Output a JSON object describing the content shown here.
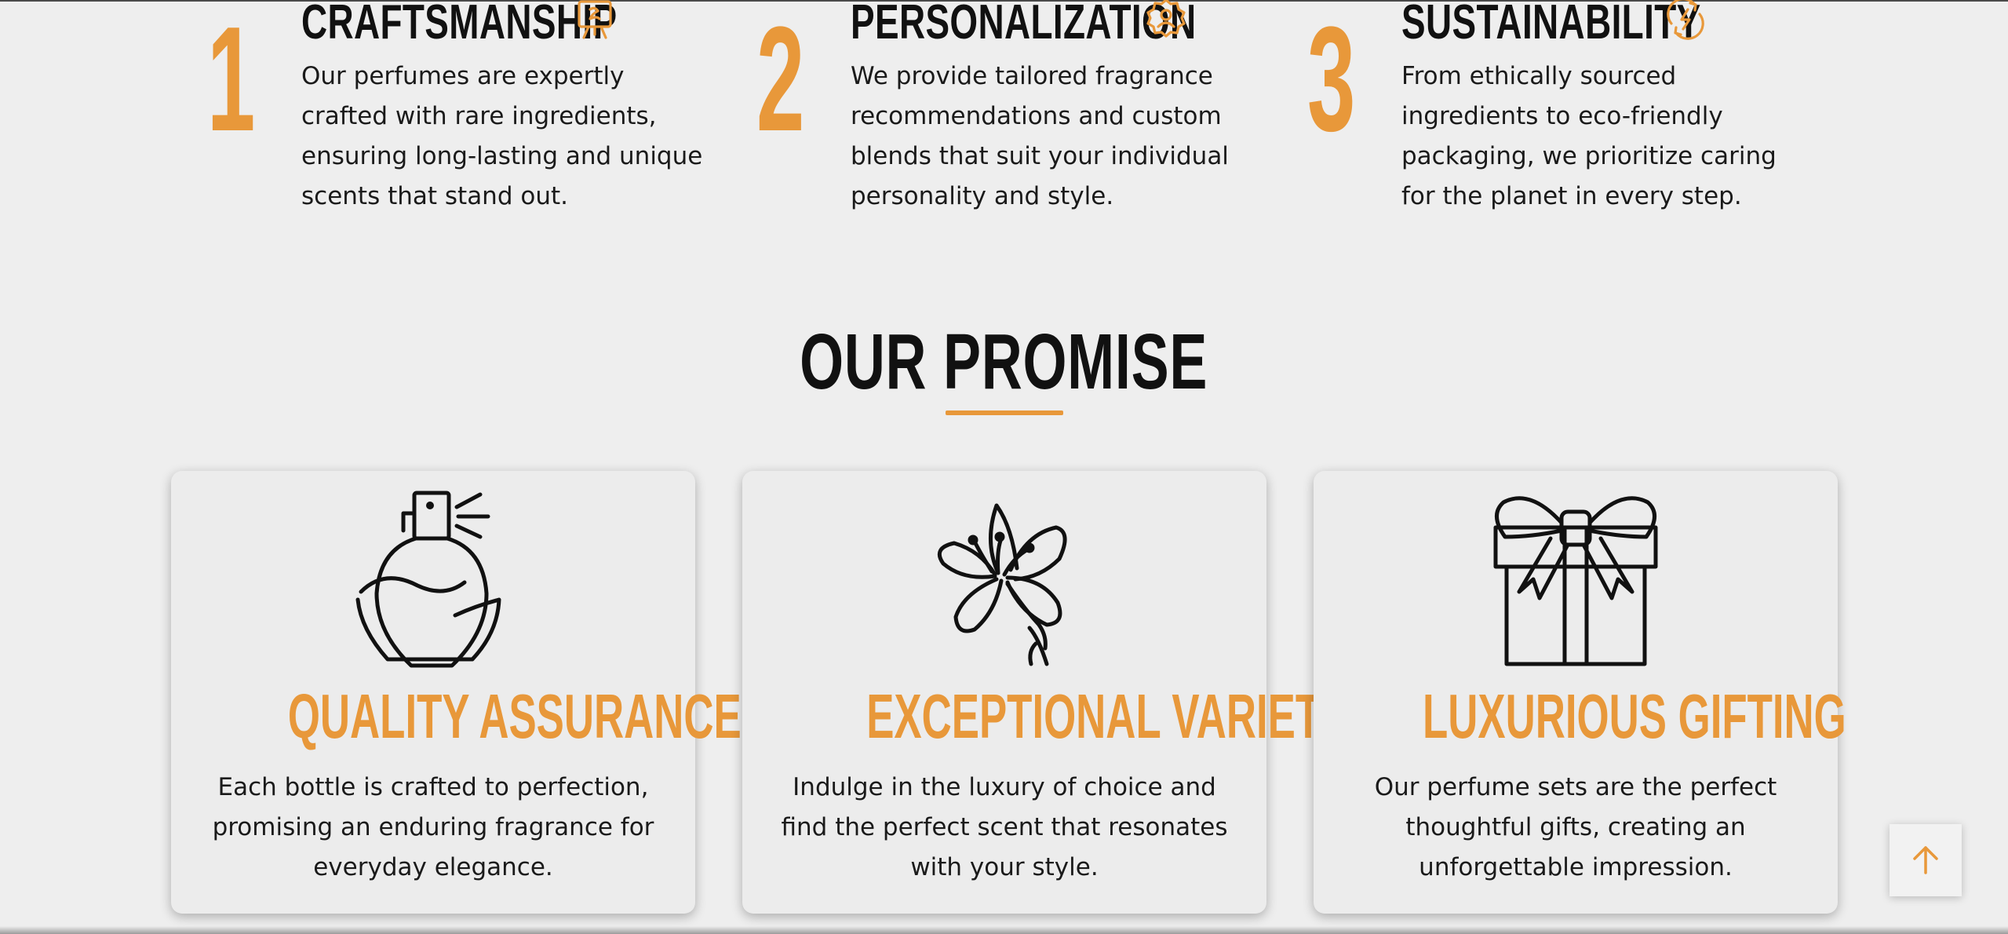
{
  "colors": {
    "accent": "#e8983a",
    "text": "#111111",
    "background": "#eeeeee",
    "card_background": "#ececec"
  },
  "features": [
    {
      "number": "1",
      "title": "CRAFTSMANSHIP",
      "icon": "easel-icon",
      "description": "Our perfumes are expertly crafted with rare ingredients, ensuring long-lasting and unique scents that stand out."
    },
    {
      "number": "2",
      "title": "PERSONALIZATION",
      "icon": "user-badge-icon",
      "description": "We provide tailored fragrance recommendations and custom blends that suit your individual personality and style."
    },
    {
      "number": "3",
      "title": "SUSTAINABILITY",
      "icon": "eco-energy-icon",
      "description": "From ethically sourced ingredients to eco-friendly packaging, we prioritize caring for the planet in every step."
    }
  ],
  "promise": {
    "title": "OUR PROMISE",
    "cards": [
      {
        "icon": "perfume-bottle-icon",
        "title": "QUALITY ASSURANCE",
        "description": "Each bottle is crafted to perfection, promising an enduring fragrance for everyday elegance."
      },
      {
        "icon": "lily-flower-icon",
        "title": "EXCEPTIONAL VARIETY",
        "description": "Indulge in the luxury of choice and find the perfect scent that resonates with your style."
      },
      {
        "icon": "gift-box-icon",
        "title": "LUXURIOUS GIFTING",
        "description": "Our perfume sets are the perfect thoughtful gifts, creating an unforgettable impression."
      }
    ]
  },
  "back_to_top": {
    "icon": "arrow-up-icon"
  }
}
